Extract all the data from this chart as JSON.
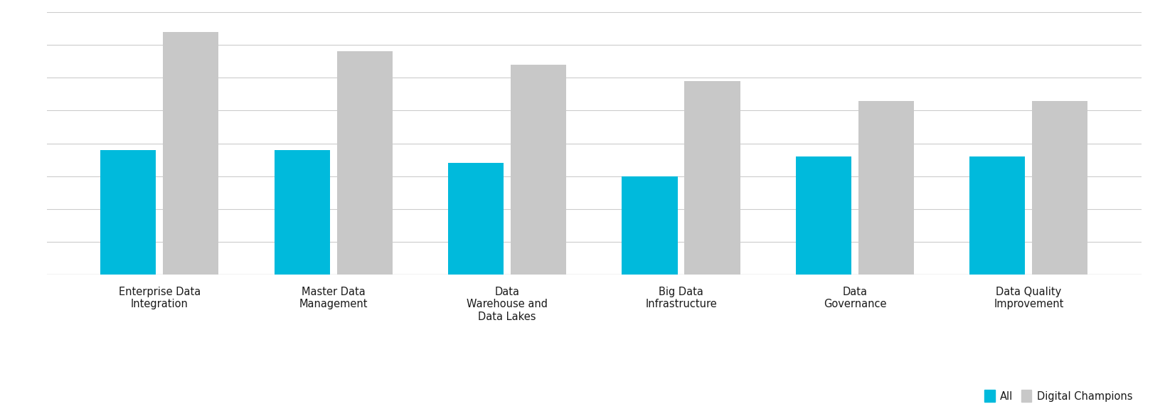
{
  "categories": [
    "Enterprise Data\nIntegration",
    "Master Data\nManagement",
    "Data\nWarehouse and\nData Lakes",
    "Big Data\nInfrastructure",
    "Data\nGovernance",
    "Data Quality\nImprovement"
  ],
  "all_values": [
    38,
    38,
    34,
    30,
    36,
    36
  ],
  "digital_champions_values": [
    74,
    68,
    64,
    59,
    53,
    53
  ],
  "bar_color_all": "#00BADC",
  "bar_color_digital": "#C8C8C8",
  "legend_labels": [
    "All",
    "Digital Champions"
  ],
  "background_color": "#FFFFFF",
  "text_color": "#1A1A1A",
  "grid_color": "#CCCCCC",
  "bar_width": 0.32,
  "ylim": [
    0,
    80
  ],
  "label_fontsize": 10.5,
  "legend_fontsize": 10.5
}
